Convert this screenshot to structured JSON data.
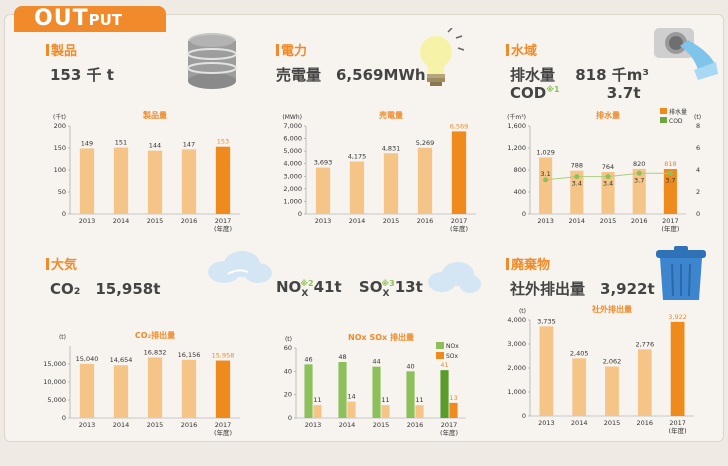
{
  "header": {
    "title_big": "OUT",
    "title_small": "PUT"
  },
  "colors": {
    "bar": "#f5c487",
    "bar_latest": "#ef8b1c",
    "green": "#8dc05a",
    "green_dark": "#5a9c2c",
    "accent": "#f08a2a"
  },
  "panels": [
    {
      "key": "product",
      "title": "製品",
      "line1": "153 千 t",
      "line2": "",
      "icon": "oil-drum-icon",
      "chart_data": {
        "type": "bar",
        "title": "製品量",
        "unit": "(千t)",
        "categories": [
          "2013",
          "2014",
          "2015",
          "2016",
          "2017"
        ],
        "year_note": "(年度)",
        "values": [
          149,
          151,
          144,
          147,
          153
        ],
        "labels": [
          "149",
          "151",
          "144",
          "147",
          "153"
        ],
        "ylim": [
          0,
          200
        ],
        "yticks": [
          "0",
          "50",
          "100",
          "150",
          "200"
        ]
      }
    },
    {
      "key": "power",
      "title": "電力",
      "line1": "売電量　6,569MWh",
      "line2": "",
      "icon": "light-bulb-icon",
      "chart_data": {
        "type": "bar",
        "title": "売電量",
        "unit": "(MWh)",
        "categories": [
          "2013",
          "2014",
          "2015",
          "2016",
          "2017"
        ],
        "year_note": "(年度)",
        "values": [
          3693,
          4175,
          4831,
          5269,
          6569
        ],
        "labels": [
          "3,693",
          "4,175",
          "4,831",
          "5,269",
          "6,569"
        ],
        "ylim": [
          0,
          7000
        ],
        "yticks": [
          "0",
          "1,000",
          "2,000",
          "3,000",
          "4,000",
          "5,000",
          "6,000",
          "7,000"
        ]
      }
    },
    {
      "key": "water",
      "title": "水域",
      "line1": "排水量　 818 千m³",
      "line2a": "COD",
      "line2sup": "※1",
      "line2b": "3.7t",
      "icon": "water-pipe-icon",
      "chart_data": {
        "type": "bar+line",
        "title": "排水量",
        "unit": "(千m³)",
        "unit_right": "(t)",
        "categories": [
          "2013",
          "2014",
          "2015",
          "2016",
          "2017"
        ],
        "year_note": "(年度)",
        "values": [
          1029,
          788,
          764,
          820,
          818
        ],
        "labels": [
          "1,029",
          "788",
          "764",
          "820",
          "818"
        ],
        "line_values": [
          3.1,
          3.4,
          3.4,
          3.7,
          3.7
        ],
        "line_labels": [
          "3.1",
          "3.4",
          "3.4",
          "3.7",
          "3.7"
        ],
        "ylim": [
          0,
          1600
        ],
        "yticks": [
          "0",
          "400",
          "800",
          "1,200",
          "1,600"
        ],
        "ylim_right": [
          0,
          8
        ],
        "yticks_right": [
          "0",
          "2",
          "4",
          "6",
          "8"
        ],
        "legend": [
          "排水量",
          "COD"
        ]
      }
    },
    {
      "key": "air",
      "title": "大気",
      "line1": "CO₂　15,958t",
      "line2": "",
      "icon": "cloud-icon",
      "chart_data": {
        "type": "bar",
        "title": "CO₂排出量",
        "unit": "(t)",
        "categories": [
          "2013",
          "2014",
          "2015",
          "2016",
          "2017"
        ],
        "year_note": "(年度)",
        "values": [
          15040,
          14654,
          16832,
          16156,
          15958
        ],
        "labels": [
          "15,040",
          "14,654",
          "16,832",
          "16,156",
          "15,958"
        ],
        "ylim": [
          0,
          20000
        ],
        "yticks": [
          "0",
          "5,000",
          "10,000",
          "15,000"
        ]
      }
    },
    {
      "key": "noxsox",
      "title": "",
      "line1": "NOx※2 41t　SOx※3 13t",
      "line2": "",
      "nox": "NO",
      "nox_sub": "X",
      "nox_sup": "※2",
      "nox_val": "41t",
      "sox": "SO",
      "sox_sub": "X",
      "sox_sup": "※3",
      "sox_val": "13t",
      "icon": "cloud-icon",
      "chart_data": {
        "type": "grouped-bar",
        "title": "NOx SOx 排出量",
        "unit": "(t)",
        "categories": [
          "2013",
          "2014",
          "2015",
          "2016",
          "2017"
        ],
        "year_note": "(年度)",
        "series": [
          {
            "name": "NOx",
            "values": [
              46,
              48,
              44,
              40,
              41
            ],
            "labels": [
              "46",
              "48",
              "44",
              "40",
              "41"
            ]
          },
          {
            "name": "SOx",
            "values": [
              11,
              14,
              11,
              11,
              13
            ],
            "labels": [
              "11",
              "14",
              "11",
              "11",
              "13"
            ]
          }
        ],
        "ylim": [
          0,
          60
        ],
        "yticks": [
          "0",
          "20",
          "40",
          "60"
        ]
      }
    },
    {
      "key": "waste",
      "title": "廃棄物",
      "line1": "社外排出量　3,922t",
      "line2": "",
      "icon": "trash-can-icon",
      "chart_data": {
        "type": "bar",
        "title": "社外排出量",
        "unit": "(t)",
        "categories": [
          "2013",
          "2014",
          "2015",
          "2016",
          "2017"
        ],
        "year_note": "(年度)",
        "values": [
          3735,
          2405,
          2062,
          2776,
          3922
        ],
        "labels": [
          "3,735",
          "2,405",
          "2,062",
          "2,776",
          "3,922"
        ],
        "ylim": [
          0,
          4000
        ],
        "yticks": [
          "0",
          "1,000",
          "2,000",
          "3,000",
          "4,000"
        ]
      }
    }
  ]
}
